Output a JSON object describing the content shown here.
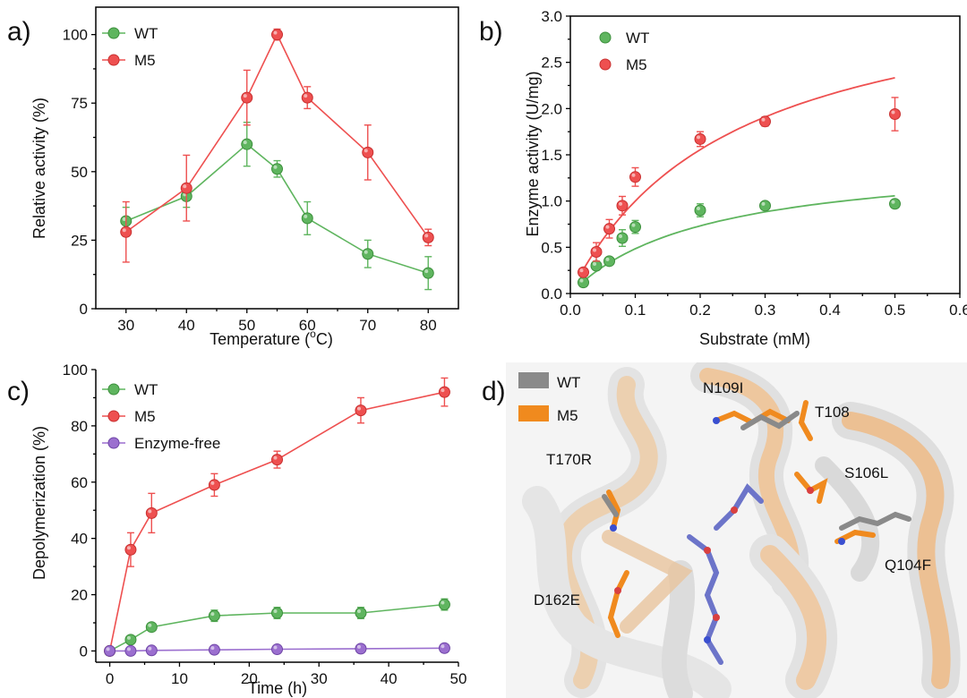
{
  "colors": {
    "wt": "#5fb55f",
    "wt_stroke": "#3c8f3c",
    "m5": "#ee5050",
    "m5_stroke": "#c83030",
    "enzyme_free": "#9b6fcf",
    "enzyme_free_stroke": "#6e45a6",
    "struct_wt": "#8a8a8a",
    "struct_m5": "#f08a1e"
  },
  "chart_data": [
    {
      "panel": "a)",
      "type": "line",
      "xlabel": "Temperature (",
      "xlabel_degree": "o",
      "xlabel_unit": "C)",
      "ylabel": "Relative activity (%)",
      "xlim": [
        25,
        85
      ],
      "ylim": [
        0,
        110
      ],
      "xticks": [
        30,
        40,
        50,
        60,
        70,
        80
      ],
      "yticks": [
        0,
        25,
        50,
        75,
        100
      ],
      "legend": "top-left",
      "series": [
        {
          "name": "WT",
          "color_key": "wt",
          "points": [
            [
              30,
              32,
              5
            ],
            [
              40,
              41,
              4
            ],
            [
              50,
              60,
              8
            ],
            [
              55,
              51,
              3
            ],
            [
              60,
              33,
              6
            ],
            [
              70,
              20,
              5
            ],
            [
              80,
              13,
              6
            ]
          ]
        },
        {
          "name": "M5",
          "color_key": "m5",
          "points": [
            [
              30,
              28,
              11
            ],
            [
              40,
              44,
              12
            ],
            [
              50,
              77,
              10
            ],
            [
              55,
              100,
              2
            ],
            [
              60,
              77,
              4
            ],
            [
              70,
              57,
              10
            ],
            [
              80,
              26,
              3
            ]
          ]
        }
      ]
    },
    {
      "panel": "b)",
      "type": "scatter",
      "xlabel": "Substrate (mM)",
      "ylabel": "Enzyme activity (U/mg)",
      "xlim": [
        0,
        0.6
      ],
      "ylim": [
        0,
        3.0
      ],
      "xticks": [
        0.0,
        0.1,
        0.2,
        0.3,
        0.4,
        0.5,
        0.6
      ],
      "yticks": [
        0.0,
        0.5,
        1.0,
        1.5,
        2.0,
        2.5,
        3.0
      ],
      "legend": "top-left",
      "series": [
        {
          "name": "WT",
          "color_key": "wt",
          "points": [
            [
              0.02,
              0.12,
              0.02
            ],
            [
              0.04,
              0.3,
              0.03
            ],
            [
              0.06,
              0.35,
              0.03
            ],
            [
              0.08,
              0.6,
              0.09
            ],
            [
              0.1,
              0.72,
              0.07
            ],
            [
              0.2,
              0.9,
              0.07
            ],
            [
              0.3,
              0.95,
              0.02
            ],
            [
              0.5,
              0.97,
              0.02
            ]
          ],
          "fit": {
            "vmax": 1.5,
            "km": 0.21
          }
        },
        {
          "name": "M5",
          "color_key": "m5",
          "points": [
            [
              0.02,
              0.23,
              0.03
            ],
            [
              0.04,
              0.45,
              0.1
            ],
            [
              0.06,
              0.7,
              0.1
            ],
            [
              0.08,
              0.95,
              0.1
            ],
            [
              0.1,
              1.26,
              0.1
            ],
            [
              0.2,
              1.67,
              0.08
            ],
            [
              0.3,
              1.86,
              0.05
            ],
            [
              0.5,
              1.94,
              0.18
            ]
          ],
          "fit": {
            "vmax": 3.5,
            "km": 0.25
          }
        }
      ]
    },
    {
      "panel": "c)",
      "type": "line",
      "xlabel": "Time (h)",
      "ylabel": "Depolymerization (%)",
      "xlim": [
        -2,
        50
      ],
      "ylim": [
        -4,
        100
      ],
      "xticks": [
        0,
        10,
        20,
        30,
        40,
        50
      ],
      "yticks": [
        0,
        20,
        40,
        60,
        80,
        100
      ],
      "legend": "top-left",
      "series": [
        {
          "name": "WT",
          "color_key": "wt",
          "points": [
            [
              0,
              0,
              0.3
            ],
            [
              3,
              4,
              0.8
            ],
            [
              6,
              8.5,
              1.2
            ],
            [
              15,
              12.5,
              2
            ],
            [
              24,
              13.5,
              2
            ],
            [
              36,
              13.5,
              2
            ],
            [
              48,
              16.5,
              2
            ]
          ]
        },
        {
          "name": "M5",
          "color_key": "m5",
          "points": [
            [
              0,
              0,
              0.3
            ],
            [
              3,
              36,
              6
            ],
            [
              6,
              49,
              7
            ],
            [
              15,
              59,
              4
            ],
            [
              24,
              68,
              3
            ],
            [
              36,
              85.5,
              4.5
            ],
            [
              48,
              92,
              5
            ]
          ]
        },
        {
          "name": "Enzyme-free",
          "color_key": "enzyme_free",
          "points": [
            [
              0,
              0,
              0.3
            ],
            [
              3,
              0,
              0.3
            ],
            [
              6,
              0.2,
              0.3
            ],
            [
              15,
              0.4,
              0.3
            ],
            [
              24,
              0.6,
              0.3
            ],
            [
              36,
              0.8,
              0.3
            ],
            [
              48,
              1.0,
              0.3
            ]
          ]
        }
      ]
    }
  ],
  "structure": {
    "panel": "d)",
    "legend": [
      {
        "label": "WT",
        "color_key": "struct_wt"
      },
      {
        "label": "M5",
        "color_key": "struct_m5"
      }
    ],
    "labels": [
      "N109I",
      "T108",
      "T170R",
      "S106L",
      "Q104F",
      "D162E"
    ]
  }
}
